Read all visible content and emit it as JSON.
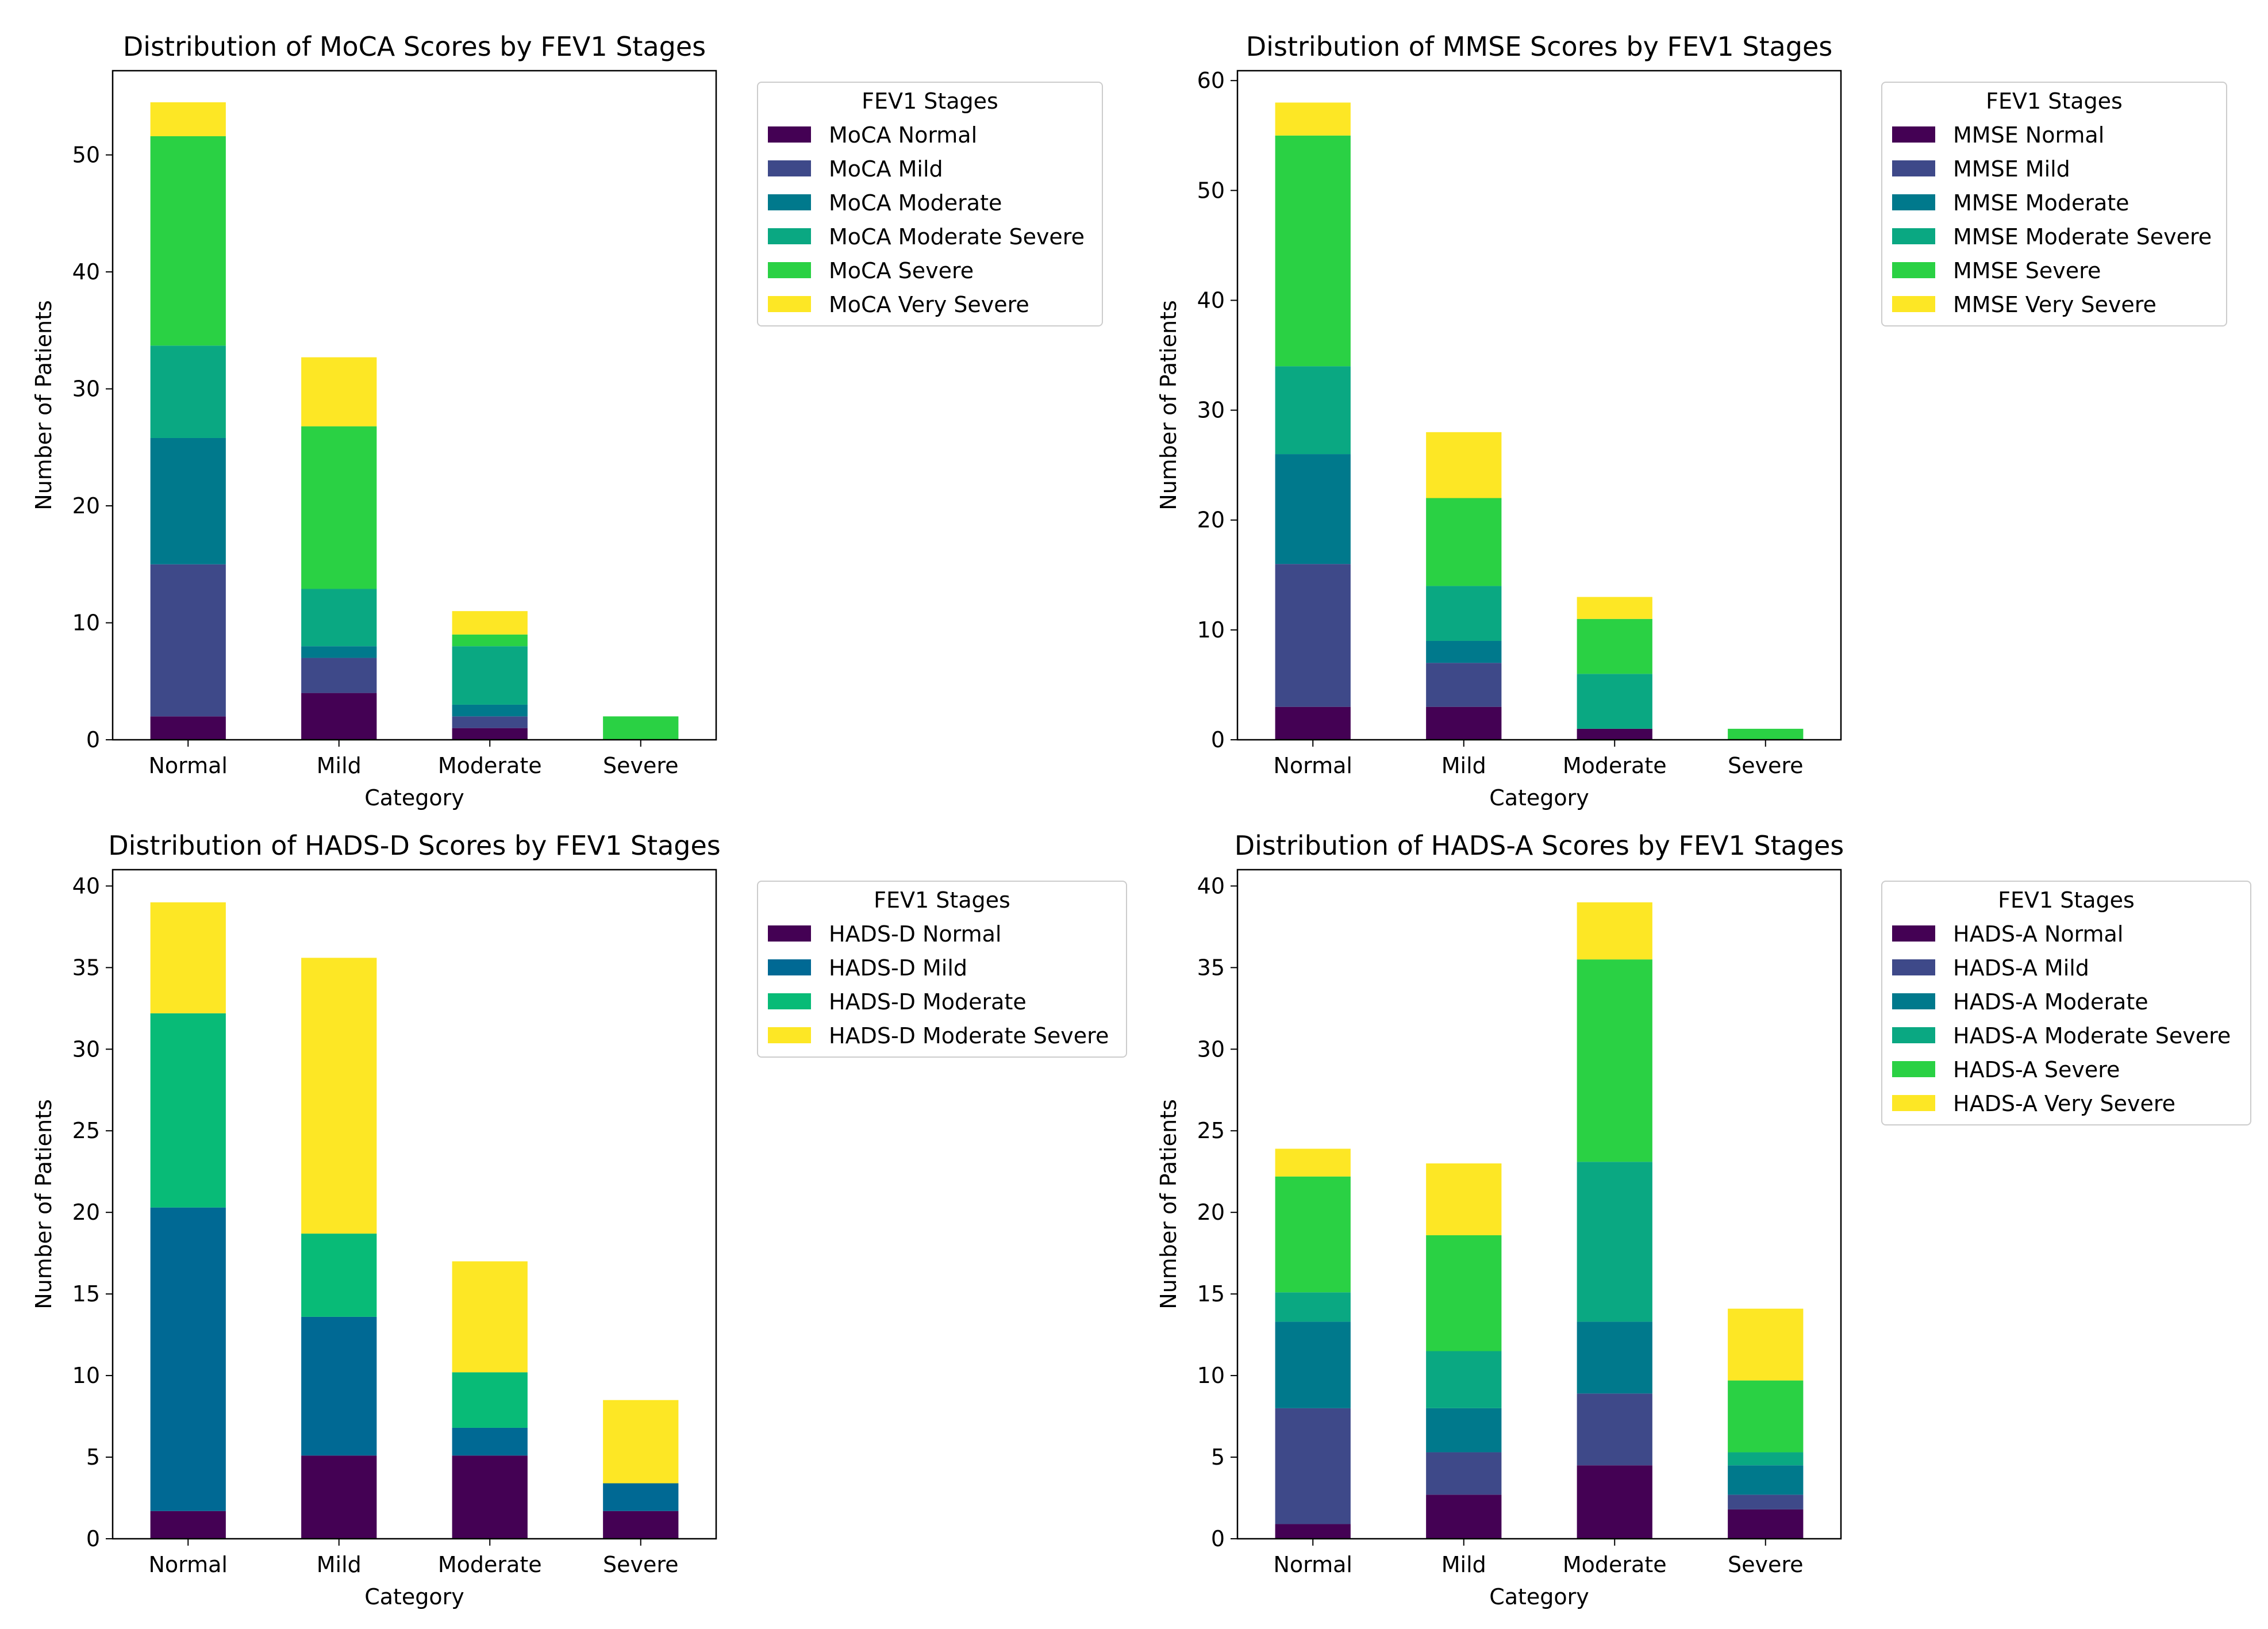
{
  "figure": {
    "background": "#ffffff"
  },
  "chart_data": [
    {
      "type": "bar",
      "stacked": true,
      "title": "Distribution of MoCA Scores by FEV1 Stages",
      "xlabel": "Category",
      "ylabel": "Number of Patients",
      "categories": [
        "Normal",
        "Mild",
        "Moderate",
        "Severe"
      ],
      "ylim": [
        0,
        57.2
      ],
      "yticks": [
        0,
        10,
        20,
        30,
        40,
        50
      ],
      "legend_title": "FEV1 Stages",
      "legend_position": "outside-upper-right",
      "series": [
        {
          "name": "MoCA Normal",
          "color": "#440154",
          "values": [
            2,
            4,
            1,
            0
          ]
        },
        {
          "name": "MoCA Mild",
          "color": "#3e4989",
          "values": [
            13,
            3,
            1,
            0
          ]
        },
        {
          "name": "MoCA Moderate",
          "color": "#00798c",
          "values": [
            10.8,
            1,
            1,
            0
          ]
        },
        {
          "name": "MoCA Moderate Severe",
          "color": "#0aa882",
          "values": [
            7.9,
            4.9,
            5,
            0
          ]
        },
        {
          "name": "MoCA Severe",
          "color": "#2ad144",
          "values": [
            17.9,
            13.9,
            1,
            2
          ]
        },
        {
          "name": "MoCA Very Severe",
          "color": "#fde725",
          "values": [
            2.9,
            5.9,
            2,
            0
          ]
        }
      ]
    },
    {
      "type": "bar",
      "stacked": true,
      "title": "Distribution of MMSE Scores by FEV1 Stages",
      "xlabel": "Category",
      "ylabel": "Number of Patients",
      "categories": [
        "Normal",
        "Mild",
        "Moderate",
        "Severe"
      ],
      "ylim": [
        0,
        60.9
      ],
      "yticks": [
        0,
        10,
        20,
        30,
        40,
        50,
        60
      ],
      "legend_title": "FEV1 Stages",
      "legend_position": "outside-upper-right",
      "series": [
        {
          "name": "MMSE Normal",
          "color": "#440154",
          "values": [
            3,
            3,
            1,
            0
          ]
        },
        {
          "name": "MMSE Mild",
          "color": "#3e4989",
          "values": [
            13,
            4,
            0,
            0
          ]
        },
        {
          "name": "MMSE Moderate",
          "color": "#00798c",
          "values": [
            10,
            2,
            0,
            0
          ]
        },
        {
          "name": "MMSE Moderate Severe",
          "color": "#0aa882",
          "values": [
            8,
            5,
            5,
            0
          ]
        },
        {
          "name": "MMSE Severe",
          "color": "#2ad144",
          "values": [
            21,
            8,
            5,
            1
          ]
        },
        {
          "name": "MMSE Very Severe",
          "color": "#fde725",
          "values": [
            3,
            6,
            2,
            0
          ]
        }
      ]
    },
    {
      "type": "bar",
      "stacked": true,
      "title": "Distribution of HADS-D Scores by FEV1 Stages",
      "xlabel": "Category",
      "ylabel": "Number of Patients",
      "categories": [
        "Normal",
        "Mild",
        "Moderate",
        "Severe"
      ],
      "ylim": [
        0,
        41
      ],
      "yticks": [
        0,
        5,
        10,
        15,
        20,
        25,
        30,
        35,
        40
      ],
      "legend_title": "FEV1 Stages",
      "legend_position": "outside-upper-right",
      "series": [
        {
          "name": "HADS-D Normal",
          "color": "#440154",
          "values": [
            1.7,
            5.1,
            5.1,
            1.7
          ]
        },
        {
          "name": "HADS-D Mild",
          "color": "#006994",
          "values": [
            18.6,
            8.5,
            1.7,
            1.7
          ]
        },
        {
          "name": "HADS-D Moderate",
          "color": "#08bb77",
          "values": [
            11.9,
            5.1,
            3.4,
            0
          ]
        },
        {
          "name": "HADS-D Moderate Severe",
          "color": "#fde725",
          "values": [
            6.8,
            16.9,
            6.8,
            5.1
          ]
        }
      ]
    },
    {
      "type": "bar",
      "stacked": true,
      "title": "Distribution of HADS-A Scores by FEV1 Stages",
      "xlabel": "Category",
      "ylabel": "Number of Patients",
      "categories": [
        "Normal",
        "Mild",
        "Moderate",
        "Severe"
      ],
      "ylim": [
        0,
        41
      ],
      "yticks": [
        0,
        5,
        10,
        15,
        20,
        25,
        30,
        35,
        40
      ],
      "legend_title": "FEV1 Stages",
      "legend_position": "outside-upper-right",
      "series": [
        {
          "name": "HADS-A Normal",
          "color": "#440154",
          "values": [
            0.9,
            2.7,
            4.5,
            1.8
          ]
        },
        {
          "name": "HADS-A Mild",
          "color": "#3e4989",
          "values": [
            7.1,
            2.6,
            4.4,
            0.9
          ]
        },
        {
          "name": "HADS-A Moderate",
          "color": "#00798c",
          "values": [
            5.3,
            2.7,
            4.4,
            1.8
          ]
        },
        {
          "name": "HADS-A Moderate Severe",
          "color": "#0aa882",
          "values": [
            1.8,
            3.5,
            9.8,
            0.8
          ]
        },
        {
          "name": "HADS-A Severe",
          "color": "#2ad144",
          "values": [
            7.1,
            7.1,
            12.4,
            4.4
          ]
        },
        {
          "name": "HADS-A Very Severe",
          "color": "#fde725",
          "values": [
            1.7,
            4.4,
            3.5,
            4.4
          ]
        }
      ]
    }
  ]
}
